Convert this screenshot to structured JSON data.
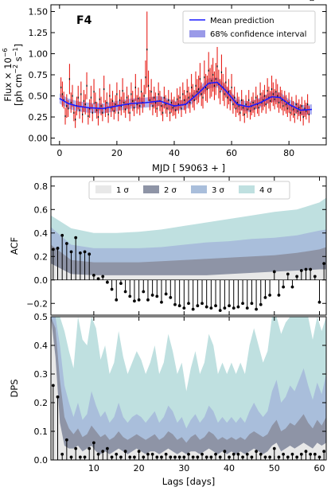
{
  "chart_data": [
    {
      "type": "scatter",
      "panel_label": "F4",
      "xlabel": "MJD [ 59063 + ]",
      "ylabel_line1": "Flux × 10",
      "ylabel_exp": "−6",
      "ylabel_line2": "[ph cm",
      "ylabel_line2_exp1": "−2",
      "ylabel_line2_mid": " s",
      "ylabel_line2_exp2": "−1",
      "ylabel_line2_end": "]",
      "xlim": [
        -3,
        93
      ],
      "ylim": [
        -0.08,
        1.58
      ],
      "xticks": [
        0,
        20,
        40,
        60,
        80
      ],
      "yticks": [
        0.0,
        0.25,
        0.5,
        0.75,
        1.0,
        1.25,
        1.5
      ],
      "ytick_labels": [
        "0.00",
        "0.25",
        "0.50",
        "0.75",
        "1.00",
        "1.25",
        "1.50"
      ],
      "legend": [
        {
          "label": "Mean prediction",
          "color": "#1a1aff"
        },
        {
          "label": "68% confidence interval",
          "color": "#9a9ae8"
        }
      ],
      "mean_prediction": {
        "x": [
          0,
          3,
          6,
          10,
          15,
          20,
          25,
          30,
          35,
          40,
          44,
          48,
          52,
          55,
          58,
          62,
          66,
          70,
          74,
          77,
          80,
          84,
          88
        ],
        "y": [
          0.47,
          0.41,
          0.38,
          0.36,
          0.35,
          0.38,
          0.41,
          0.42,
          0.44,
          0.38,
          0.4,
          0.52,
          0.65,
          0.66,
          0.56,
          0.4,
          0.37,
          0.42,
          0.49,
          0.48,
          0.4,
          0.33,
          0.34
        ]
      },
      "points_x": [
        0.5,
        1.0,
        1.5,
        2.0,
        2.5,
        3.0,
        3.5,
        4.0,
        4.5,
        5.0,
        5.5,
        6.0,
        6.5,
        7.0,
        7.5,
        8.0,
        8.5,
        9.0,
        9.5,
        10.0,
        10.5,
        11.0,
        11.5,
        12.0,
        12.5,
        13.0,
        13.5,
        14.0,
        14.5,
        15.0,
        15.5,
        16.0,
        16.5,
        17.0,
        17.5,
        18.0,
        18.5,
        19.0,
        19.5,
        20.0,
        20.5,
        21.0,
        21.5,
        22.0,
        22.5,
        23.0,
        23.5,
        24.0,
        24.5,
        25.0,
        25.5,
        26.0,
        26.5,
        27.0,
        27.5,
        28.0,
        28.5,
        29.0,
        29.5,
        30.0,
        30.5,
        31.0,
        31.5,
        32.0,
        32.5,
        33.0,
        33.5,
        34.0,
        34.5,
        35.0,
        35.5,
        36.0,
        36.5,
        37.0,
        37.5,
        38.0,
        38.5,
        39.0,
        39.5,
        40.0,
        40.5,
        41.0,
        41.5,
        42.0,
        42.5,
        43.0,
        43.5,
        44.0,
        44.5,
        45.0,
        45.5,
        46.0,
        46.5,
        47.0,
        47.5,
        48.0,
        48.5,
        49.0,
        49.5,
        50.0,
        50.5,
        51.0,
        51.5,
        52.0,
        52.5,
        53.0,
        53.5,
        54.0,
        54.5,
        55.0,
        55.5,
        56.0,
        56.5,
        57.0,
        57.5,
        58.0,
        58.5,
        59.0,
        59.5,
        60.0,
        60.5,
        61.0,
        61.5,
        62.0,
        62.5,
        63.0,
        63.5,
        64.0,
        64.5,
        65.0,
        65.5,
        66.0,
        66.5,
        67.0,
        67.5,
        68.0,
        68.5,
        69.0,
        69.5,
        70.0,
        70.5,
        71.0,
        71.5,
        72.0,
        72.5,
        73.0,
        73.5,
        74.0,
        74.5,
        75.0,
        75.5,
        76.0,
        76.5,
        77.0,
        77.5,
        78.0,
        78.5,
        79.0,
        79.5,
        80.0,
        80.5,
        81.0,
        81.5,
        82.0,
        82.5,
        83.0,
        83.5,
        84.0,
        84.5,
        85.0,
        85.5,
        86.0,
        86.5,
        87.0,
        87.5,
        88.0,
        88.5
      ],
      "points_y": [
        0.6,
        0.52,
        0.45,
        0.26,
        0.38,
        0.35,
        0.7,
        0.42,
        0.5,
        0.3,
        0.22,
        0.38,
        0.48,
        0.33,
        0.52,
        0.28,
        0.44,
        0.4,
        0.62,
        0.26,
        0.35,
        0.48,
        0.3,
        0.55,
        0.42,
        0.33,
        0.25,
        0.46,
        0.38,
        0.3,
        0.58,
        0.35,
        0.42,
        0.28,
        0.5,
        0.36,
        0.44,
        0.32,
        0.4,
        0.52,
        0.3,
        0.45,
        0.38,
        0.56,
        0.42,
        0.34,
        0.48,
        0.4,
        0.3,
        0.52,
        0.44,
        0.36,
        0.6,
        0.4,
        0.47,
        0.38,
        0.55,
        0.42,
        0.5,
        0.72,
        1.05,
        0.62,
        0.45,
        0.55,
        0.38,
        0.48,
        0.42,
        0.35,
        0.52,
        0.44,
        0.38,
        0.3,
        0.48,
        0.4,
        0.35,
        0.45,
        0.3,
        0.42,
        0.36,
        0.38,
        0.33,
        0.46,
        0.4,
        0.48,
        0.35,
        0.52,
        0.45,
        0.4,
        0.55,
        0.48,
        0.42,
        0.6,
        0.5,
        0.45,
        0.62,
        0.55,
        0.58,
        0.7,
        0.52,
        0.48,
        0.72,
        0.6,
        0.58,
        0.8,
        0.65,
        0.68,
        0.75,
        0.62,
        0.7,
        0.85,
        0.64,
        0.55,
        0.78,
        0.6,
        0.52,
        0.66,
        0.48,
        0.55,
        0.45,
        0.6,
        0.4,
        0.48,
        0.35,
        0.42,
        0.38,
        0.3,
        0.45,
        0.36,
        0.28,
        0.4,
        0.34,
        0.45,
        0.32,
        0.38,
        0.42,
        0.35,
        0.48,
        0.4,
        0.36,
        0.52,
        0.42,
        0.45,
        0.5,
        0.4,
        0.56,
        0.48,
        0.44,
        0.58,
        0.52,
        0.46,
        0.55,
        0.5,
        0.42,
        0.48,
        0.45,
        0.38,
        0.44,
        0.4,
        0.35,
        0.42,
        0.3,
        0.38,
        0.34,
        0.28,
        0.4,
        0.32,
        0.36,
        0.3,
        0.38,
        0.25,
        0.35,
        0.32,
        0.4,
        0.28
      ],
      "points_err": [
        0.12,
        0.15,
        0.1,
        0.1,
        0.14,
        0.1,
        0.18,
        0.12,
        0.13,
        0.1,
        0.1,
        0.11,
        0.14,
        0.1,
        0.15,
        0.1,
        0.13,
        0.12,
        0.16,
        0.1,
        0.11,
        0.14,
        0.1,
        0.15,
        0.12,
        0.1,
        0.1,
        0.13,
        0.11,
        0.1,
        0.16,
        0.1,
        0.12,
        0.1,
        0.14,
        0.11,
        0.12,
        0.1,
        0.11,
        0.14,
        0.1,
        0.12,
        0.11,
        0.15,
        0.12,
        0.1,
        0.13,
        0.11,
        0.1,
        0.14,
        0.12,
        0.1,
        0.16,
        0.11,
        0.13,
        0.11,
        0.15,
        0.12,
        0.13,
        0.2,
        0.45,
        0.18,
        0.12,
        0.15,
        0.11,
        0.13,
        0.12,
        0.1,
        0.14,
        0.12,
        0.11,
        0.1,
        0.13,
        0.11,
        0.1,
        0.12,
        0.1,
        0.12,
        0.1,
        0.11,
        0.1,
        0.13,
        0.11,
        0.13,
        0.1,
        0.14,
        0.12,
        0.11,
        0.15,
        0.13,
        0.12,
        0.16,
        0.14,
        0.12,
        0.17,
        0.15,
        0.16,
        0.19,
        0.14,
        0.13,
        0.2,
        0.16,
        0.16,
        0.22,
        0.18,
        0.19,
        0.2,
        0.17,
        0.19,
        0.23,
        0.17,
        0.15,
        0.21,
        0.16,
        0.14,
        0.18,
        0.13,
        0.15,
        0.12,
        0.16,
        0.11,
        0.13,
        0.1,
        0.12,
        0.11,
        0.1,
        0.12,
        0.1,
        0.1,
        0.11,
        0.1,
        0.12,
        0.1,
        0.11,
        0.12,
        0.1,
        0.13,
        0.11,
        0.1,
        0.14,
        0.12,
        0.12,
        0.13,
        0.11,
        0.15,
        0.13,
        0.12,
        0.16,
        0.14,
        0.12,
        0.15,
        0.14,
        0.12,
        0.13,
        0.12,
        0.11,
        0.12,
        0.11,
        0.1,
        0.12,
        0.1,
        0.11,
        0.1,
        0.1,
        0.11,
        0.1,
        0.1,
        0.1,
        0.11,
        0.1,
        0.1,
        0.1,
        0.12,
        0.1
      ]
    },
    {
      "type": "bar",
      "ylabel": "ACF",
      "xlim": [
        0.5,
        61.5
      ],
      "ylim": [
        -0.3,
        0.88
      ],
      "yticks": [
        -0.2,
        0.0,
        0.2,
        0.4,
        0.6,
        0.8
      ],
      "ytick_labels": [
        "−0.2",
        "0.0",
        "0.2",
        "0.4",
        "0.6",
        "0.8"
      ],
      "legend": [
        {
          "label": "1 σ",
          "color": "#e8e8e8"
        },
        {
          "label": "2 σ",
          "color": "#8e94a6"
        },
        {
          "label": "3 σ",
          "color": "#a9bedb"
        },
        {
          "label": "4 σ",
          "color": "#bfe0e0"
        }
      ],
      "bands_lags": [
        0.5,
        5,
        10,
        15,
        20,
        25,
        30,
        35,
        40,
        45,
        50,
        55,
        60,
        61.5
      ],
      "band_1sigma": [
        0.14,
        0.05,
        0.04,
        0.04,
        0.04,
        0.04,
        0.04,
        0.04,
        0.05,
        0.06,
        0.07,
        0.08,
        0.09,
        0.09
      ],
      "band_2sigma": [
        0.3,
        0.17,
        0.15,
        0.15,
        0.15,
        0.16,
        0.17,
        0.18,
        0.19,
        0.2,
        0.21,
        0.23,
        0.26,
        0.28
      ],
      "band_3sigma": [
        0.45,
        0.3,
        0.27,
        0.27,
        0.27,
        0.28,
        0.3,
        0.32,
        0.33,
        0.35,
        0.36,
        0.38,
        0.42,
        0.43
      ],
      "band_4sigma": [
        0.55,
        0.44,
        0.4,
        0.4,
        0.41,
        0.43,
        0.46,
        0.49,
        0.52,
        0.55,
        0.58,
        0.6,
        0.66,
        0.7
      ],
      "lags": [
        1,
        2,
        3,
        4,
        5,
        6,
        7,
        8,
        9,
        10,
        11,
        12,
        13,
        14,
        15,
        16,
        17,
        18,
        19,
        20,
        21,
        22,
        23,
        24,
        25,
        26,
        27,
        28,
        29,
        30,
        31,
        32,
        33,
        34,
        35,
        36,
        37,
        38,
        39,
        40,
        41,
        42,
        43,
        44,
        45,
        46,
        47,
        48,
        49,
        50,
        51,
        52,
        53,
        54,
        55,
        56,
        57,
        58,
        59,
        60,
        61
      ],
      "values": [
        0.26,
        0.27,
        0.38,
        0.31,
        0.24,
        0.36,
        0.23,
        0.24,
        0.22,
        0.04,
        0.01,
        0.03,
        -0.02,
        -0.08,
        -0.17,
        -0.03,
        -0.1,
        -0.14,
        -0.18,
        -0.17,
        -0.1,
        -0.17,
        -0.13,
        -0.14,
        -0.19,
        -0.12,
        -0.15,
        -0.21,
        -0.22,
        -0.24,
        -0.2,
        -0.25,
        -0.22,
        -0.2,
        -0.23,
        -0.24,
        -0.22,
        -0.26,
        -0.24,
        -0.22,
        -0.24,
        -0.23,
        -0.2,
        -0.24,
        -0.2,
        -0.25,
        -0.21,
        -0.15,
        -0.13,
        0.07,
        -0.13,
        -0.06,
        0.05,
        -0.06,
        0.03,
        0.08,
        0.09,
        0.09,
        0.03,
        -0.19,
        0.14
      ]
    },
    {
      "type": "bar",
      "ylabel": "DPS",
      "xlabel": "Lags [days]",
      "xlim": [
        0.5,
        61.5
      ],
      "ylim": [
        0,
        0.5
      ],
      "xticks": [
        10,
        20,
        30,
        40,
        50,
        60
      ],
      "yticks": [
        0.0,
        0.1,
        0.2,
        0.3,
        0.4,
        0.5
      ],
      "ytick_labels": [
        "0.0",
        "0.1",
        "0.2",
        "0.3",
        "0.4",
        "0.5"
      ],
      "bands_lags": [
        0.5,
        1.5,
        2.5,
        3.5,
        4.5,
        5.5,
        6.5,
        7.5,
        8.5,
        9.5,
        10.5,
        11.5,
        12.5,
        13.5,
        14.5,
        15.5,
        16.5,
        17.5,
        18.5,
        19.5,
        20.5,
        21.5,
        22.5,
        23.5,
        24.5,
        25.5,
        26.5,
        27.5,
        28.5,
        29.5,
        30.5,
        31.5,
        32.5,
        33.5,
        34.5,
        35.5,
        36.5,
        37.5,
        38.5,
        39.5,
        40.5,
        41.5,
        42.5,
        43.5,
        44.5,
        45.5,
        46.5,
        47.5,
        48.5,
        49.5,
        50.5,
        51.5,
        52.5,
        53.5,
        54.5,
        55.5,
        56.5,
        57.5,
        58.5,
        59.5,
        60.5,
        61.5
      ],
      "band_1sigma": [
        0.5,
        0.36,
        0.13,
        0.05,
        0.04,
        0.04,
        0.05,
        0.03,
        0.04,
        0.05,
        0.03,
        0.02,
        0.03,
        0.02,
        0.03,
        0.04,
        0.03,
        0.02,
        0.03,
        0.04,
        0.03,
        0.02,
        0.03,
        0.03,
        0.02,
        0.03,
        0.04,
        0.03,
        0.02,
        0.03,
        0.02,
        0.03,
        0.03,
        0.02,
        0.03,
        0.04,
        0.03,
        0.02,
        0.03,
        0.02,
        0.03,
        0.02,
        0.03,
        0.02,
        0.03,
        0.04,
        0.03,
        0.02,
        0.03,
        0.05,
        0.06,
        0.03,
        0.04,
        0.05,
        0.04,
        0.05,
        0.06,
        0.05,
        0.04,
        0.06,
        0.05,
        0.06
      ],
      "band_2sigma": [
        0.5,
        0.46,
        0.28,
        0.15,
        0.11,
        0.09,
        0.11,
        0.08,
        0.09,
        0.12,
        0.1,
        0.08,
        0.09,
        0.07,
        0.08,
        0.1,
        0.08,
        0.07,
        0.08,
        0.09,
        0.08,
        0.07,
        0.08,
        0.09,
        0.07,
        0.08,
        0.1,
        0.09,
        0.07,
        0.08,
        0.06,
        0.08,
        0.09,
        0.07,
        0.08,
        0.1,
        0.09,
        0.07,
        0.08,
        0.07,
        0.08,
        0.07,
        0.08,
        0.07,
        0.09,
        0.1,
        0.09,
        0.08,
        0.09,
        0.12,
        0.14,
        0.1,
        0.11,
        0.13,
        0.12,
        0.14,
        0.16,
        0.13,
        0.11,
        0.14,
        0.12,
        0.15
      ],
      "band_3sigma": [
        0.5,
        0.5,
        0.4,
        0.26,
        0.2,
        0.15,
        0.2,
        0.14,
        0.16,
        0.24,
        0.19,
        0.15,
        0.17,
        0.13,
        0.15,
        0.2,
        0.15,
        0.13,
        0.15,
        0.16,
        0.15,
        0.13,
        0.15,
        0.17,
        0.13,
        0.15,
        0.19,
        0.17,
        0.13,
        0.15,
        0.11,
        0.14,
        0.16,
        0.13,
        0.15,
        0.19,
        0.17,
        0.13,
        0.15,
        0.13,
        0.15,
        0.13,
        0.15,
        0.13,
        0.17,
        0.2,
        0.17,
        0.15,
        0.17,
        0.24,
        0.28,
        0.2,
        0.22,
        0.26,
        0.24,
        0.28,
        0.32,
        0.26,
        0.21,
        0.27,
        0.23,
        0.3
      ],
      "band_4sigma": [
        0.5,
        0.5,
        0.5,
        0.45,
        0.38,
        0.32,
        0.5,
        0.42,
        0.4,
        0.5,
        0.46,
        0.35,
        0.4,
        0.3,
        0.34,
        0.45,
        0.36,
        0.3,
        0.34,
        0.38,
        0.35,
        0.3,
        0.34,
        0.4,
        0.3,
        0.34,
        0.44,
        0.38,
        0.3,
        0.34,
        0.24,
        0.32,
        0.38,
        0.3,
        0.34,
        0.44,
        0.4,
        0.3,
        0.34,
        0.3,
        0.34,
        0.3,
        0.34,
        0.3,
        0.4,
        0.46,
        0.4,
        0.34,
        0.38,
        0.5,
        0.5,
        0.44,
        0.48,
        0.5,
        0.5,
        0.5,
        0.5,
        0.5,
        0.42,
        0.5,
        0.45,
        0.5
      ],
      "lags": [
        1,
        2,
        3,
        4,
        5,
        6,
        7,
        8,
        9,
        10,
        11,
        12,
        13,
        14,
        15,
        16,
        17,
        18,
        19,
        20,
        21,
        22,
        23,
        24,
        25,
        26,
        27,
        28,
        29,
        30,
        31,
        32,
        33,
        34,
        35,
        36,
        37,
        38,
        39,
        40,
        41,
        42,
        43,
        44,
        45,
        46,
        47,
        48,
        49,
        50,
        51,
        52,
        53,
        54,
        55,
        56,
        57,
        58,
        59,
        60,
        61
      ],
      "values": [
        0.26,
        0.22,
        0.02,
        0.07,
        0.01,
        0.04,
        0.01,
        0.01,
        0.04,
        0.06,
        0.02,
        0.03,
        0.04,
        0.01,
        0.02,
        0.01,
        0.03,
        0.01,
        0.01,
        0.03,
        0.01,
        0.02,
        0.02,
        0.01,
        0.01,
        0.02,
        0.01,
        0.01,
        0.01,
        0.01,
        0.02,
        0.01,
        0.01,
        0.02,
        0.01,
        0.01,
        0.02,
        0.01,
        0.03,
        0.01,
        0.02,
        0.02,
        0.01,
        0.02,
        0.01,
        0.03,
        0.02,
        0.01,
        0.01,
        0.04,
        0.01,
        0.02,
        0.01,
        0.02,
        0.01,
        0.02,
        0.03,
        0.02,
        0.02,
        0.01,
        0.03
      ]
    }
  ]
}
